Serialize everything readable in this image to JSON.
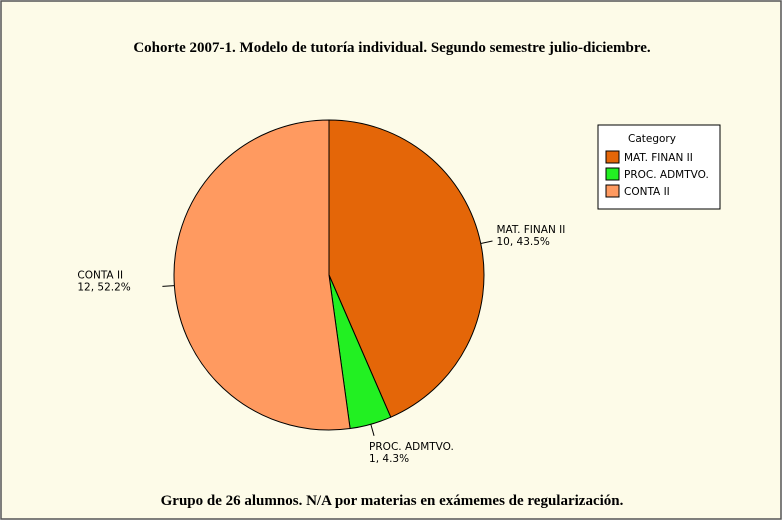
{
  "chart_data": {
    "type": "pie",
    "title": "Cohorte 2007-1. Modelo de tutoría individual. Segundo semestre julio-diciembre.",
    "categories": [
      "MAT. FINAN II",
      "PROC. ADMTVO.",
      "CONTA II"
    ],
    "values": [
      10,
      1,
      12
    ],
    "value_labels": [
      "10, 43.5%",
      "1, 4.3%",
      "12, 52.2%"
    ],
    "colors": [
      "#e46608",
      "#22f022",
      "#ff9a60"
    ],
    "legend_title": "Category",
    "legend": "top-right",
    "caption": "Grupo de 26 alumnos. N/A por materias en exámemes de regularización."
  }
}
